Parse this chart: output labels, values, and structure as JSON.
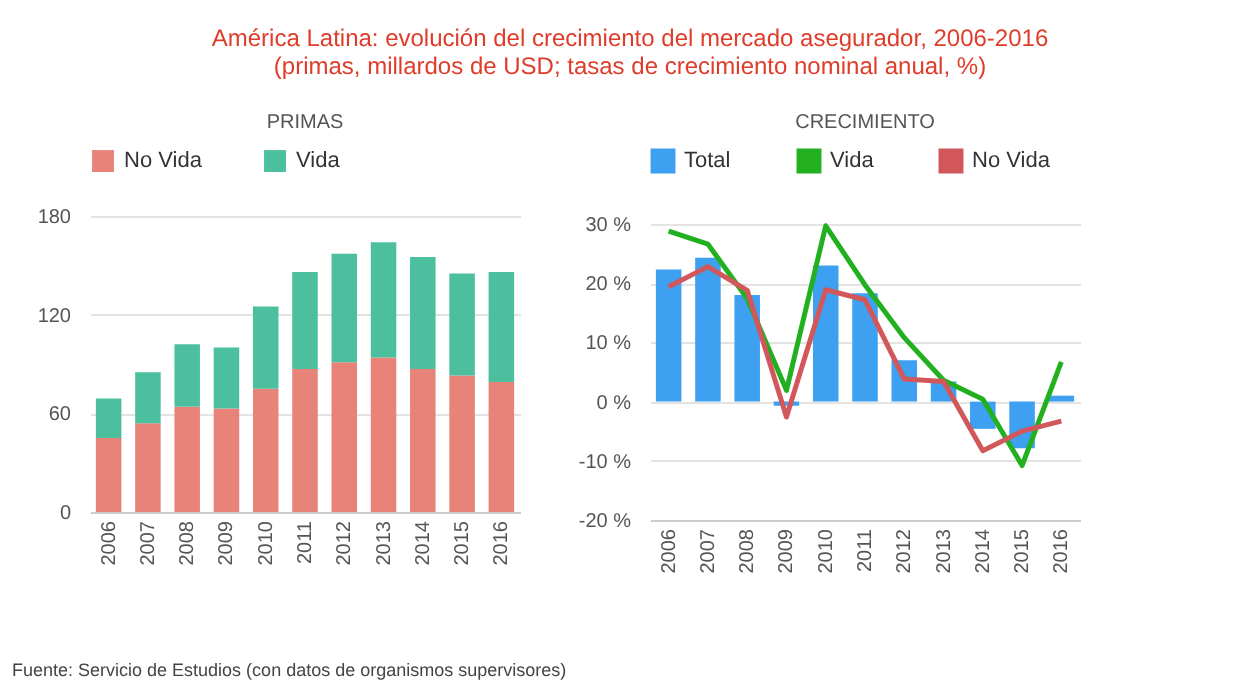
{
  "chart_data": [
    {
      "type": "bar",
      "title": "América Latina: evolución del crecimiento del mercado asegurador, 2006-2016",
      "subtitle": "(primas, millardos de USD; tasas de crecimiento nominal anual, %)",
      "annotations": [
        "Fuente: Servicio de Estudios (con datos de organismos supervisores)"
      ],
      "xlabel": "PRIMAS",
      "categories": [
        "2006",
        "2007",
        "2008",
        "2009",
        "2010",
        "2011",
        "2012",
        "2013",
        "2014",
        "2015",
        "2016"
      ],
      "stacked": true,
      "legend": "top",
      "grid": "y",
      "ylim": [
        0,
        180
      ],
      "yticks": [
        0,
        60,
        120,
        180
      ],
      "series": [
        {
          "name": "No Vida",
          "color": "#e8837a",
          "values": [
            45,
            54,
            64,
            63,
            75,
            87,
            91,
            94,
            87,
            83,
            79
          ]
        },
        {
          "name": "Vida",
          "color": "#4cbf9f",
          "values": [
            24,
            31,
            38,
            37,
            50,
            59,
            66,
            70,
            68,
            62,
            67
          ]
        }
      ]
    },
    {
      "type": "bar",
      "xlabel": "CRECIMIENTO",
      "categories": [
        "2006",
        "2007",
        "2008",
        "2009",
        "2010",
        "2011",
        "2012",
        "2013",
        "2014",
        "2015",
        "2016"
      ],
      "legend": "top",
      "grid": "y",
      "marker": "none",
      "ylim": [
        -20,
        30
      ],
      "yticks": [
        {
          "value": -20,
          "label": "-20 %"
        },
        {
          "value": -10,
          "label": "-10 %"
        },
        {
          "value": 0,
          "label": "0 %"
        },
        {
          "value": 10,
          "label": "10 %"
        },
        {
          "value": 20,
          "label": "20 %"
        },
        {
          "value": 30,
          "label": "30 %"
        }
      ],
      "series": [
        {
          "name": "Total",
          "color": "#3ea0f0",
          "values": [
            22.3,
            24.3,
            18,
            -0.7,
            23,
            18.3,
            7,
            3.4,
            -4.6,
            -7.9,
            1
          ]
        },
        {
          "name": "Vida",
          "type": "line",
          "color": "#22b020",
          "values": [
            28.8,
            26.6,
            17.4,
            1.9,
            29.7,
            19.7,
            10.8,
            3.6,
            0.4,
            -10.8,
            6.7
          ]
        },
        {
          "name": "No Vida",
          "type": "line",
          "color": "#d2575a",
          "values": [
            19.4,
            22.8,
            18.8,
            -2.6,
            18.9,
            17.2,
            3.8,
            3.4,
            -8.3,
            -5,
            -3.3
          ]
        }
      ]
    }
  ]
}
